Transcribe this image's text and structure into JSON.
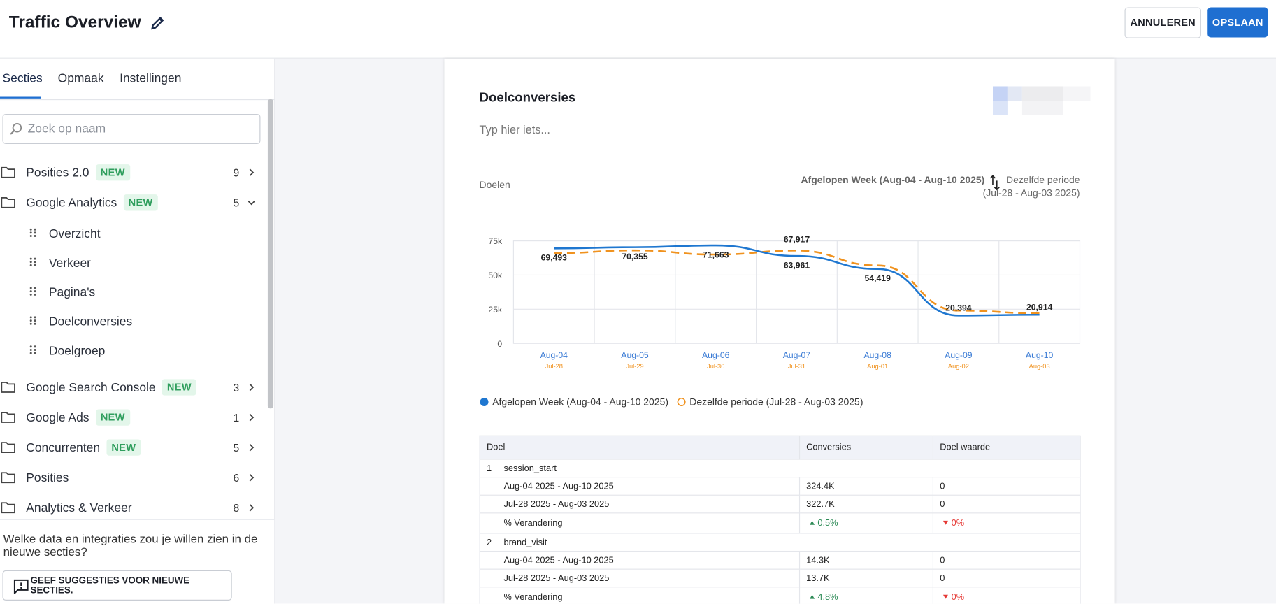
{
  "header": {
    "title": "Traffic Overview",
    "cancel": "ANNULEREN",
    "save": "OPSLAAN"
  },
  "sidebar": {
    "tabs": [
      "Secties",
      "Opmaak",
      "Instellingen"
    ],
    "search_placeholder": "Zoek op naam",
    "sections": [
      {
        "label": "Posities 2.0",
        "badge": "NEW",
        "count": 9
      },
      {
        "label": "Google Analytics",
        "badge": "NEW",
        "count": 5,
        "children": [
          "Overzicht",
          "Verkeer",
          "Pagina's",
          "Doelconversies",
          "Doelgroep"
        ]
      },
      {
        "label": "Google Search Console",
        "badge": "NEW",
        "count": 3
      },
      {
        "label": "Google Ads",
        "badge": "NEW",
        "count": 1
      },
      {
        "label": "Concurrenten",
        "badge": "NEW",
        "count": 5
      },
      {
        "label": "Posities",
        "count": 6
      },
      {
        "label": "Analytics & Verkeer",
        "count": 8
      }
    ],
    "question": "Welke data en integraties zou je willen zien in de nieuwe secties?",
    "suggest_button": "GEEF SUGGESTIES VOOR NIEUWE SECTIES."
  },
  "card": {
    "title": "Doelconversies",
    "placeholder": "Typ hier iets...",
    "chart_label": "Doelen",
    "period": "Afgelopen Week (Aug-04 - Aug-10 2025)",
    "compare": "Dezelfde periode",
    "compare_range": "(Jul-28 - Aug-03 2025)"
  },
  "chart_data": {
    "type": "line",
    "categories": [
      "Aug-04",
      "Aug-05",
      "Aug-06",
      "Aug-07",
      "Aug-08",
      "Aug-09",
      "Aug-10"
    ],
    "categories2": [
      "Jul-28",
      "Jul-29",
      "Jul-30",
      "Jul-31",
      "Aug-01",
      "Aug-02",
      "Aug-03"
    ],
    "ylim": [
      0,
      75000
    ],
    "yticks": [
      0,
      {
        "value": 25000,
        "label": "25k"
      },
      {
        "value": 50000,
        "label": "50k"
      },
      {
        "value": 75000,
        "label": "75k"
      }
    ],
    "grid": true,
    "series": [
      {
        "name": "Afgelopen Week (Aug-04 - Aug-10 2025)",
        "color": "#1f77d0",
        "style": "solid",
        "values": [
          69493,
          70355,
          71663,
          63961,
          54419,
          20394,
          20914
        ],
        "value_labels": [
          "69,493",
          "70,355",
          "71,663",
          "63,961",
          "54,419",
          "20,394",
          "20,914"
        ]
      },
      {
        "name": "Dezelfde periode (Jul-28 - Aug-03 2025)",
        "color": "#f0921e",
        "style": "dashed",
        "values": [
          66000,
          68000,
          65000,
          67917,
          57000,
          24000,
          22000
        ],
        "value_labels": [
          null,
          null,
          null,
          "67,917",
          null,
          null,
          null
        ]
      }
    ]
  },
  "table": {
    "headers": [
      "Doel",
      "Conversies",
      "Doel waarde"
    ],
    "groups": [
      {
        "index": 1,
        "name": "session_start",
        "change_directions": [
          "up",
          "down"
        ],
        "rows": [
          [
            "Aug-04 2025 - Aug-10 2025",
            "324.4K",
            "0"
          ],
          [
            "Jul-28 2025 - Aug-03 2025",
            "322.7K",
            "0"
          ],
          [
            "% Verandering",
            "0.5%",
            "0%"
          ]
        ]
      },
      {
        "index": 2,
        "name": "brand_visit",
        "change_directions": [
          "up",
          "down"
        ],
        "rows": [
          [
            "Aug-04 2025 - Aug-10 2025",
            "14.3K",
            "0"
          ],
          [
            "Jul-28 2025 - Aug-03 2025",
            "13.7K",
            "0"
          ],
          [
            "% Verandering",
            "4.8%",
            "0%"
          ]
        ]
      }
    ]
  }
}
